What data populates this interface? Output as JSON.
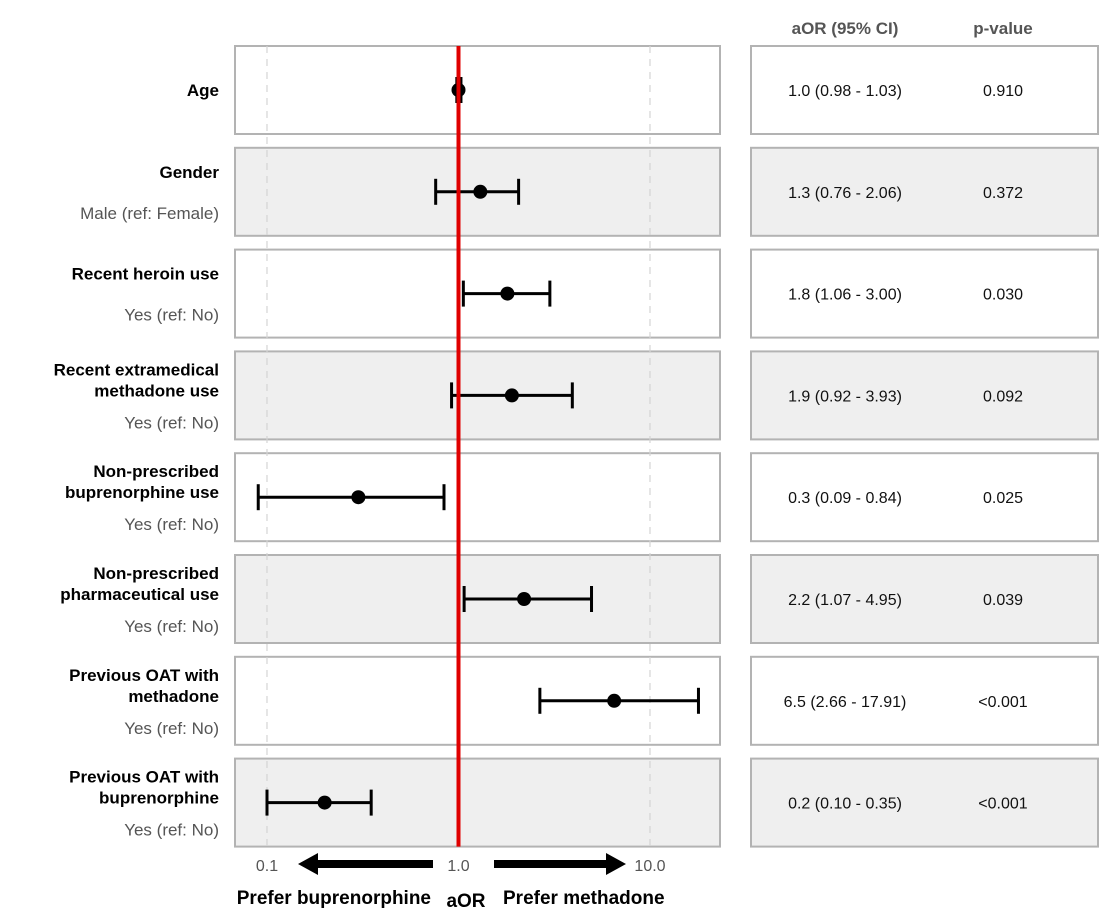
{
  "chart_data": {
    "type": "forest",
    "x_scale": "log10",
    "xlim": [
      0.075,
      20
    ],
    "reference_value": 1.0,
    "xticks": [
      {
        "value": 0.1,
        "label": "0.1"
      },
      {
        "value": 1.0,
        "label": "1.0"
      },
      {
        "value": 10.0,
        "label": "10.0"
      }
    ],
    "xlabel": "aOR",
    "direction_left": "Prefer buprenorphine",
    "direction_right": "Prefer methadone",
    "table_headers": {
      "or": "aOR (95% CI)",
      "p": "p-value"
    },
    "rows": [
      {
        "variable": [
          "Age"
        ],
        "level": "",
        "or": 1.0,
        "lower": 0.98,
        "upper": 1.03,
        "or_text": "1.0 (0.98 - 1.03)",
        "p": "0.910"
      },
      {
        "variable": [
          "Gender"
        ],
        "level": "Male (ref: Female)",
        "or": 1.3,
        "lower": 0.76,
        "upper": 2.06,
        "or_text": "1.3 (0.76 - 2.06)",
        "p": "0.372"
      },
      {
        "variable": [
          "Recent heroin use"
        ],
        "level": "Yes (ref: No)",
        "or": 1.8,
        "lower": 1.06,
        "upper": 3.0,
        "or_text": "1.8 (1.06 - 3.00)",
        "p": "0.030"
      },
      {
        "variable": [
          "Recent extramedical",
          "methadone use"
        ],
        "level": "Yes (ref: No)",
        "or": 1.9,
        "lower": 0.92,
        "upper": 3.93,
        "or_text": "1.9 (0.92 - 3.93)",
        "p": "0.092"
      },
      {
        "variable": [
          "Non-prescribed",
          "buprenorphine use"
        ],
        "level": "Yes (ref: No)",
        "or": 0.3,
        "lower": 0.09,
        "upper": 0.84,
        "or_text": "0.3 (0.09 - 0.84)",
        "p": "0.025"
      },
      {
        "variable": [
          "Non-prescribed",
          "pharmaceutical use"
        ],
        "level": "Yes (ref: No)",
        "or": 2.2,
        "lower": 1.07,
        "upper": 4.95,
        "or_text": "2.2 (1.07 - 4.95)",
        "p": "0.039"
      },
      {
        "variable": [
          "Previous OAT with",
          "methadone"
        ],
        "level": "Yes (ref: No)",
        "or": 6.5,
        "lower": 2.66,
        "upper": 17.91,
        "or_text": "6.5 (2.66 - 17.91)",
        "p": "<0.001"
      },
      {
        "variable": [
          "Previous OAT with",
          "buprenorphine"
        ],
        "level": "Yes (ref: No)",
        "or": 0.2,
        "lower": 0.1,
        "upper": 0.35,
        "or_text": "0.2 (0.10 - 0.35)",
        "p": "<0.001"
      }
    ],
    "colors": {
      "reference_line": "#e00000",
      "panel_fill_alt": "#efefef",
      "panel_fill": "#ffffff",
      "panel_border": "#b3b3b3",
      "marker": "#000000"
    }
  }
}
